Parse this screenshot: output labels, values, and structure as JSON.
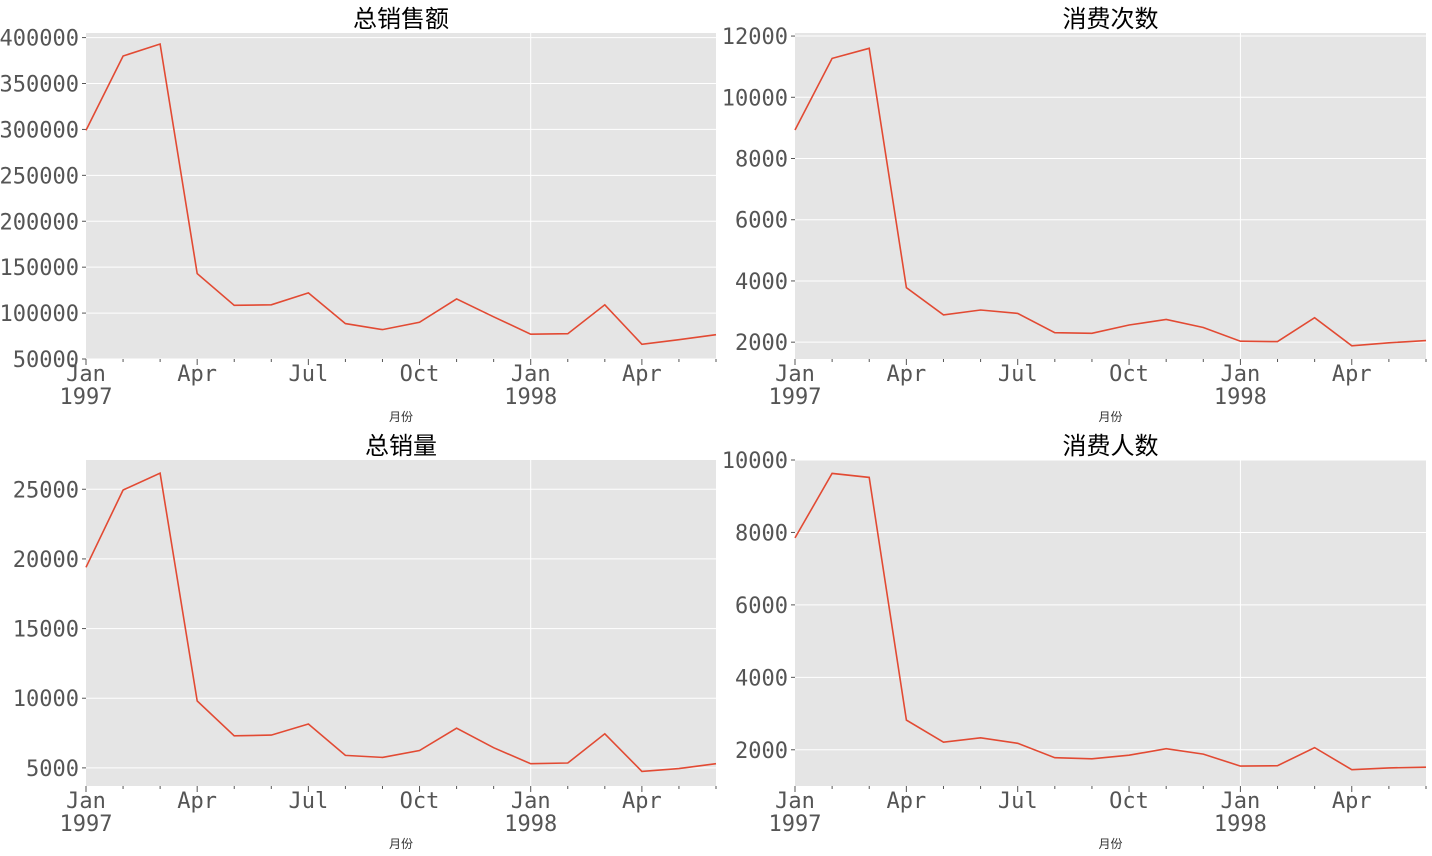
{
  "chart_data": [
    {
      "type": "line",
      "title": "总销售额",
      "xlabel": "月份",
      "ylabel": "",
      "x": [
        "1997-01",
        "1997-02",
        "1997-03",
        "1997-04",
        "1997-05",
        "1997-06",
        "1997-07",
        "1997-08",
        "1997-09",
        "1997-10",
        "1997-11",
        "1997-12",
        "1998-01",
        "1998-02",
        "1998-03",
        "1998-04",
        "1998-05",
        "1998-06"
      ],
      "values": [
        299000,
        380000,
        393000,
        143000,
        108500,
        109000,
        122000,
        88500,
        82000,
        90000,
        115500,
        96000,
        77000,
        77500,
        109000,
        66000,
        71000,
        76500
      ],
      "ylim": [
        50000,
        405000
      ],
      "yticks": [
        "50000",
        "100000",
        "150000",
        "200000",
        "250000",
        "300000",
        "350000",
        "400000"
      ],
      "ytick_values": [
        50000,
        100000,
        150000,
        200000,
        250000,
        300000,
        350000,
        400000
      ],
      "xticks": [
        {
          "label": "Jan",
          "sub": "1997",
          "i": 0
        },
        {
          "label": "Apr",
          "sub": "",
          "i": 3
        },
        {
          "label": "Jul",
          "sub": "",
          "i": 6
        },
        {
          "label": "Oct",
          "sub": "",
          "i": 9
        },
        {
          "label": "Jan",
          "sub": "1998",
          "i": 12
        },
        {
          "label": "Apr",
          "sub": "",
          "i": 15
        }
      ],
      "color": "#e24a33",
      "grid": true
    },
    {
      "type": "line",
      "title": "消费次数",
      "xlabel": "月份",
      "ylabel": "",
      "x": [
        "1997-01",
        "1997-02",
        "1997-03",
        "1997-04",
        "1997-05",
        "1997-06",
        "1997-07",
        "1997-08",
        "1997-09",
        "1997-10",
        "1997-11",
        "1997-12",
        "1998-01",
        "1998-02",
        "1998-03",
        "1998-04",
        "1998-05",
        "1998-06"
      ],
      "values": [
        8930,
        11270,
        11600,
        3780,
        2890,
        3050,
        2940,
        2310,
        2290,
        2560,
        2740,
        2480,
        2030,
        2020,
        2800,
        1880,
        1980,
        2050
      ],
      "ylim": [
        1450,
        12100
      ],
      "yticks": [
        "2000",
        "4000",
        "6000",
        "8000",
        "10000",
        "12000"
      ],
      "ytick_values": [
        2000,
        4000,
        6000,
        8000,
        10000,
        12000
      ],
      "xticks": [
        {
          "label": "Jan",
          "sub": "1997",
          "i": 0
        },
        {
          "label": "Apr",
          "sub": "",
          "i": 3
        },
        {
          "label": "Jul",
          "sub": "",
          "i": 6
        },
        {
          "label": "Oct",
          "sub": "",
          "i": 9
        },
        {
          "label": "Jan",
          "sub": "1998",
          "i": 12
        },
        {
          "label": "Apr",
          "sub": "",
          "i": 15
        }
      ],
      "color": "#e24a33",
      "grid": true
    },
    {
      "type": "line",
      "title": "总销量",
      "xlabel": "月份",
      "ylabel": "",
      "x": [
        "1997-01",
        "1997-02",
        "1997-03",
        "1997-04",
        "1997-05",
        "1997-06",
        "1997-07",
        "1997-08",
        "1997-09",
        "1997-10",
        "1997-11",
        "1997-12",
        "1998-01",
        "1998-02",
        "1998-03",
        "1998-04",
        "1998-05",
        "1998-06"
      ],
      "values": [
        19400,
        24950,
        26150,
        9800,
        7300,
        7350,
        8150,
        5900,
        5750,
        6250,
        7850,
        6450,
        5300,
        5350,
        7450,
        4750,
        4950,
        5300
      ],
      "ylim": [
        3700,
        27100
      ],
      "yticks": [
        "5000",
        "10000",
        "15000",
        "20000",
        "25000"
      ],
      "ytick_values": [
        5000,
        10000,
        15000,
        20000,
        25000
      ],
      "xticks": [
        {
          "label": "Jan",
          "sub": "1997",
          "i": 0
        },
        {
          "label": "Apr",
          "sub": "",
          "i": 3
        },
        {
          "label": "Jul",
          "sub": "",
          "i": 6
        },
        {
          "label": "Oct",
          "sub": "",
          "i": 9
        },
        {
          "label": "Jan",
          "sub": "1998",
          "i": 12
        },
        {
          "label": "Apr",
          "sub": "",
          "i": 15
        }
      ],
      "color": "#e24a33",
      "grid": true
    },
    {
      "type": "line",
      "title": "消费人数",
      "xlabel": "月份",
      "ylabel": "",
      "x": [
        "1997-01",
        "1997-02",
        "1997-03",
        "1997-04",
        "1997-05",
        "1997-06",
        "1997-07",
        "1997-08",
        "1997-09",
        "1997-10",
        "1997-11",
        "1997-12",
        "1998-01",
        "1998-02",
        "1998-03",
        "1998-04",
        "1998-05",
        "1998-06"
      ],
      "values": [
        7850,
        9630,
        9520,
        2820,
        2210,
        2330,
        2180,
        1780,
        1750,
        1850,
        2030,
        1880,
        1550,
        1560,
        2060,
        1450,
        1500,
        1520
      ],
      "ylim": [
        1000,
        10000
      ],
      "yticks": [
        "2000",
        "4000",
        "6000",
        "8000",
        "10000"
      ],
      "ytick_values": [
        2000,
        4000,
        6000,
        8000,
        10000
      ],
      "xticks": [
        {
          "label": "Jan",
          "sub": "1997",
          "i": 0
        },
        {
          "label": "Apr",
          "sub": "",
          "i": 3
        },
        {
          "label": "Jul",
          "sub": "",
          "i": 6
        },
        {
          "label": "Oct",
          "sub": "",
          "i": 9
        },
        {
          "label": "Jan",
          "sub": "1998",
          "i": 12
        },
        {
          "label": "Apr",
          "sub": "",
          "i": 15
        }
      ],
      "color": "#e24a33",
      "grid": true
    }
  ]
}
